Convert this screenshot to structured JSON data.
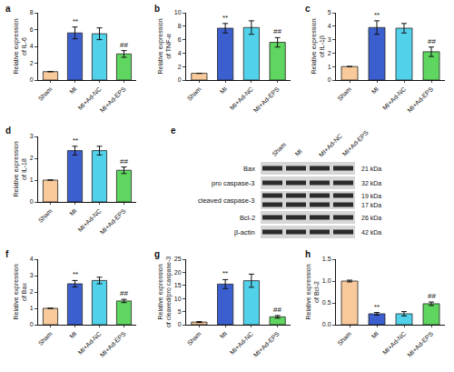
{
  "chart_data": [
    {
      "type": "bar",
      "panel": "a",
      "categories": [
        "Sham",
        "MI",
        "MI+Ad-NC",
        "MI+Ad-EPS"
      ],
      "values": [
        1,
        5.6,
        5.5,
        3.1
      ],
      "errors": [
        0,
        0.7,
        0.7,
        0.4
      ],
      "colors": [
        "#f8c99a",
        "#3c5fcf",
        "#52d2ea",
        "#5fd65f"
      ],
      "y_label": "Relative expression of IL-6",
      "ylim": [
        0,
        8
      ],
      "yticks": [
        0,
        2,
        4,
        6,
        8
      ],
      "annotations": [
        {
          "category": "MI",
          "text": "**"
        },
        {
          "category": "MI+Ad-EPS",
          "text": "##"
        }
      ]
    },
    {
      "type": "bar",
      "panel": "b",
      "categories": [
        "Sham",
        "MI",
        "MI+Ad-NC",
        "MI+Ad-EPS"
      ],
      "values": [
        1,
        7.7,
        7.8,
        5.6
      ],
      "errors": [
        0,
        0.7,
        1.0,
        0.7
      ],
      "colors": [
        "#f8c99a",
        "#3c5fcf",
        "#52d2ea",
        "#5fd65f"
      ],
      "y_label": "Relative expression of TNF-α",
      "ylim": [
        0,
        10
      ],
      "yticks": [
        0,
        2,
        4,
        6,
        8,
        10
      ],
      "annotations": [
        {
          "category": "MI",
          "text": "**"
        },
        {
          "category": "MI+Ad-EPS",
          "text": "##"
        }
      ]
    },
    {
      "type": "bar",
      "panel": "c",
      "categories": [
        "Sham",
        "MI",
        "MI+Ad-NC",
        "MI+Ad-EPS"
      ],
      "values": [
        1,
        3.9,
        3.85,
        2.1
      ],
      "errors": [
        0,
        0.5,
        0.35,
        0.35
      ],
      "colors": [
        "#f8c99a",
        "#3c5fcf",
        "#52d2ea",
        "#5fd65f"
      ],
      "y_label": "Relative expression of IL-1β",
      "ylim": [
        0,
        5
      ],
      "yticks": [
        0,
        1,
        2,
        3,
        4,
        5
      ],
      "annotations": [
        {
          "category": "MI",
          "text": "**"
        },
        {
          "category": "MI+Ad-EPS",
          "text": "##"
        }
      ]
    },
    {
      "type": "bar",
      "panel": "d",
      "categories": [
        "Sham",
        "MI",
        "MI+Ad-NC",
        "MI+Ad-EPS"
      ],
      "values": [
        1,
        2.35,
        2.35,
        1.45
      ],
      "errors": [
        0,
        0.2,
        0.2,
        0.15
      ],
      "colors": [
        "#f8c99a",
        "#3c5fcf",
        "#52d2ea",
        "#5fd65f"
      ],
      "y_label": "Relative expression of IL-18",
      "ylim": [
        0,
        3
      ],
      "yticks": [
        0,
        1,
        2,
        3
      ],
      "annotations": [
        {
          "category": "MI",
          "text": "**"
        },
        {
          "category": "MI+Ad-EPS",
          "text": "##"
        }
      ]
    },
    {
      "type": "blot",
      "panel": "e",
      "lanes": [
        "Sham",
        "MI",
        "MI+Ad-NC",
        "MI+Ad-EPS"
      ],
      "rows": [
        {
          "label": "Bax",
          "bands": [
            "21 kDa"
          ]
        },
        {
          "label": "pro caspase-3",
          "bands": [
            "32 kDa"
          ]
        },
        {
          "label": "cleaved caspase-3",
          "bands": [
            "19 kDa",
            "17 kDa"
          ]
        },
        {
          "label": "Bcl-2",
          "bands": [
            "26 kDa"
          ]
        },
        {
          "label": "β-actin",
          "bands": [
            "42 kDa"
          ]
        }
      ]
    },
    {
      "type": "bar",
      "panel": "f",
      "categories": [
        "Sham",
        "MI",
        "MI+Ad-NC",
        "MI+Ad-EPS"
      ],
      "values": [
        1,
        2.5,
        2.7,
        1.45
      ],
      "errors": [
        0,
        0.2,
        0.2,
        0.1
      ],
      "colors": [
        "#f8c99a",
        "#3c5fcf",
        "#52d2ea",
        "#5fd65f"
      ],
      "y_label": "Relative expression of Bax",
      "ylim": [
        0,
        4
      ],
      "yticks": [
        0,
        1,
        2,
        3,
        4
      ],
      "annotations": [
        {
          "category": "MI",
          "text": "**"
        },
        {
          "category": "MI+Ad-EPS",
          "text": "##"
        }
      ]
    },
    {
      "type": "bar",
      "panel": "g",
      "categories": [
        "Sham",
        "MI",
        "MI+Ad-NC",
        "MI+Ad-EPS"
      ],
      "values": [
        1,
        15.5,
        16.8,
        3.0
      ],
      "errors": [
        0.2,
        1.7,
        2.5,
        0.5
      ],
      "colors": [
        "#f8c99a",
        "#3c5fcf",
        "#52d2ea",
        "#5fd65f"
      ],
      "y_label": "Relative expression of cleaved/pro caspase-3",
      "ylim": [
        0,
        25
      ],
      "yticks": [
        0,
        5,
        10,
        15,
        20,
        25
      ],
      "annotations": [
        {
          "category": "MI",
          "text": "**"
        },
        {
          "category": "MI+Ad-EPS",
          "text": "##"
        }
      ]
    },
    {
      "type": "bar",
      "panel": "h",
      "categories": [
        "Sham",
        "MI",
        "MI+Ad-NC",
        "MI+Ad-EPS"
      ],
      "values": [
        1.0,
        0.25,
        0.25,
        0.48
      ],
      "errors": [
        0.02,
        0.03,
        0.05,
        0.04
      ],
      "colors": [
        "#f8c99a",
        "#3c5fcf",
        "#52d2ea",
        "#5fd65f"
      ],
      "y_label": "Relative expression of Bcl-2",
      "ylim": [
        0,
        1.5
      ],
      "yticks": [
        {
          "value": 0,
          "label": "0.0"
        },
        0.5,
        {
          "value": 1,
          "label": "1.0"
        },
        1.5
      ],
      "annotations": [
        {
          "category": "MI",
          "text": "**"
        },
        {
          "category": "MI+Ad-EPS",
          "text": "##"
        }
      ]
    }
  ]
}
